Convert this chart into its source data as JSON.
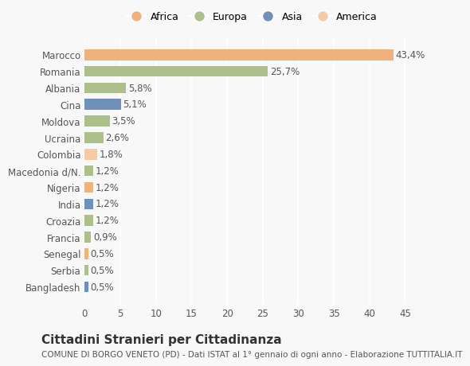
{
  "countries": [
    "Marocco",
    "Romania",
    "Albania",
    "Cina",
    "Moldova",
    "Ucraina",
    "Colombia",
    "Macedonia d/N.",
    "Nigeria",
    "India",
    "Croazia",
    "Francia",
    "Senegal",
    "Serbia",
    "Bangladesh"
  ],
  "values": [
    43.4,
    25.7,
    5.8,
    5.1,
    3.5,
    2.6,
    1.8,
    1.2,
    1.2,
    1.2,
    1.2,
    0.9,
    0.5,
    0.5,
    0.5
  ],
  "labels": [
    "43,4%",
    "25,7%",
    "5,8%",
    "5,1%",
    "3,5%",
    "2,6%",
    "1,8%",
    "1,2%",
    "1,2%",
    "1,2%",
    "1,2%",
    "0,9%",
    "0,5%",
    "0,5%",
    "0,5%"
  ],
  "colors": [
    "#F0B27A",
    "#ADBF8A",
    "#ADBF8A",
    "#7090BB",
    "#ADBF8A",
    "#ADBF8A",
    "#F5CBA7",
    "#ADBF8A",
    "#F0B27A",
    "#7090BB",
    "#ADBF8A",
    "#ADBF8A",
    "#F0B27A",
    "#ADBF8A",
    "#7090BB"
  ],
  "legend_labels": [
    "Africa",
    "Europa",
    "Asia",
    "America"
  ],
  "legend_colors": [
    "#F0B27A",
    "#ADBF8A",
    "#7090BB",
    "#F5CBA7"
  ],
  "title": "Cittadini Stranieri per Cittadinanza",
  "subtitle": "COMUNE DI BORGO VENETO (PD) - Dati ISTAT al 1° gennaio di ogni anno - Elaborazione TUTTITALIA.IT",
  "xlim": [
    0,
    47
  ],
  "xticks": [
    0,
    5,
    10,
    15,
    20,
    25,
    30,
    35,
    40,
    45
  ],
  "bg_color": "#F8F8F8",
  "grid_color": "#FFFFFF",
  "bar_height": 0.65,
  "label_fontsize": 8.5,
  "tick_fontsize": 8.5,
  "title_fontsize": 11,
  "subtitle_fontsize": 7.5
}
